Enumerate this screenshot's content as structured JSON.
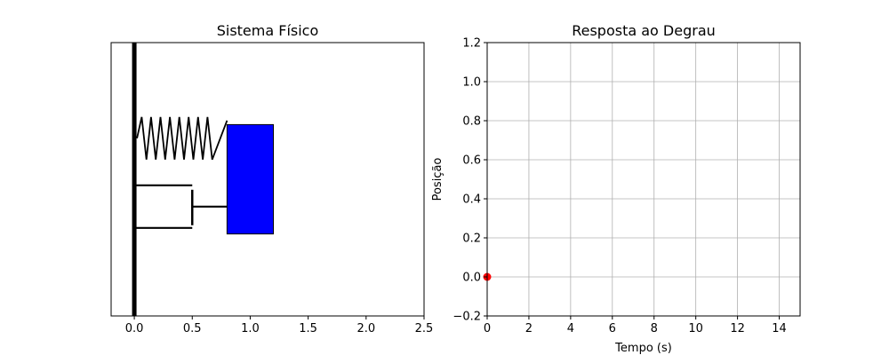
{
  "chart_data": [
    {
      "type": "diagram",
      "title": "Sistema Físico",
      "xlabel": "",
      "ylabel": "",
      "xlim": [
        -0.2,
        2.5
      ],
      "ylim": [
        -1.0,
        1.0
      ],
      "xticks": [
        "0.0",
        "0.5",
        "1.0",
        "1.5",
        "2.0",
        "2.5"
      ],
      "xtick_values": [
        0.0,
        0.5,
        1.0,
        1.5,
        2.0,
        2.5
      ],
      "elements": {
        "wall": {
          "x": 0.0,
          "color": "#000000"
        },
        "spring": {
          "x_start": 0.0,
          "x_end": 0.8,
          "y": 0.3
        },
        "damper": {
          "x_start": 0.0,
          "x_end": 0.8,
          "y": -0.2
        },
        "mass": {
          "x": 0.8,
          "width": 0.4,
          "y_bottom": -0.4,
          "y_top": 0.4,
          "color": "#0000ff"
        }
      }
    },
    {
      "type": "line",
      "title": "Resposta ao Degrau",
      "xlabel": "Tempo (s)",
      "ylabel": "Posição",
      "xlim": [
        0,
        15
      ],
      "ylim": [
        -0.2,
        1.2
      ],
      "xticks": [
        "0",
        "2",
        "4",
        "6",
        "8",
        "10",
        "12",
        "14"
      ],
      "xtick_values": [
        0,
        2,
        4,
        6,
        8,
        10,
        12,
        14
      ],
      "yticks": [
        "−0.2",
        "0.0",
        "0.2",
        "0.4",
        "0.6",
        "0.8",
        "1.0",
        "1.2"
      ],
      "ytick_values": [
        -0.2,
        0.0,
        0.2,
        0.4,
        0.6,
        0.8,
        1.0,
        1.2
      ],
      "grid": true,
      "series": [
        {
          "x": [
            0
          ],
          "y": [
            0
          ],
          "color": "#ff0000"
        }
      ]
    }
  ]
}
